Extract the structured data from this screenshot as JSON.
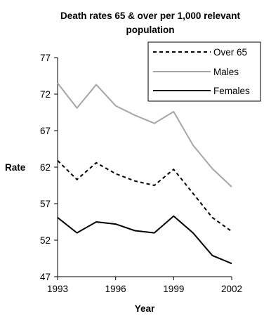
{
  "chart_data": {
    "type": "line",
    "title_lines": [
      "Death rates 65 & over per 1,000 relevant",
      "population"
    ],
    "xlabel": "Year",
    "ylabel": "Rate",
    "x": [
      1993,
      1994,
      1995,
      1996,
      1997,
      1998,
      1999,
      2000,
      2001,
      2002
    ],
    "x_ticks": [
      1993,
      1996,
      1999,
      2002
    ],
    "y_ticks": [
      47,
      52,
      57,
      62,
      67,
      72,
      77
    ],
    "xlim": [
      1993,
      2002
    ],
    "ylim": [
      47,
      77
    ],
    "grid": false,
    "legend_position": "top-right",
    "series": [
      {
        "name": "Over 65",
        "color": "#000000",
        "style": "dashed",
        "values": [
          62.9,
          60.3,
          62.6,
          61.1,
          60.1,
          59.5,
          61.7,
          58.4,
          55.1,
          53.2
        ]
      },
      {
        "name": "Males",
        "color": "#a6a6a6",
        "style": "solid",
        "values": [
          73.5,
          70.1,
          73.3,
          70.4,
          69.1,
          68.0,
          69.6,
          65.0,
          61.8,
          59.3
        ]
      },
      {
        "name": "Females",
        "color": "#000000",
        "style": "solid",
        "values": [
          55.1,
          53.0,
          54.5,
          54.2,
          53.3,
          53.0,
          55.3,
          53.0,
          49.9,
          48.8
        ]
      }
    ]
  }
}
